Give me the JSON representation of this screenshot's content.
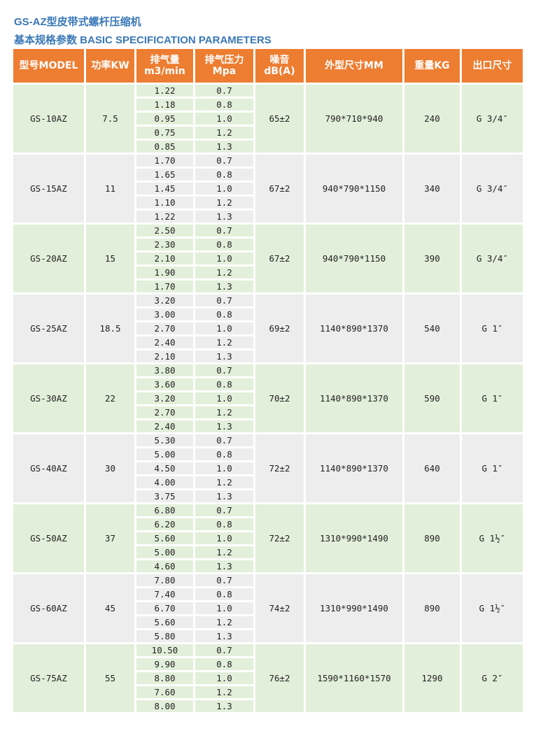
{
  "title": "GS-AZ型皮带式螺杆压缩机",
  "subtitle": "基本规格参数 BASIC SPECIFICATION PARAMETERS",
  "colors": {
    "header": "#ed7d31",
    "title": "#3a78b6",
    "row_green": "#e2efda",
    "row_gray": "#ededed"
  },
  "headers": [
    {
      "l1": "型号MODEL",
      "l2": ""
    },
    {
      "l1": "功率KW",
      "l2": ""
    },
    {
      "l1": "排气量",
      "l2": "m3/min"
    },
    {
      "l1": "排气压力",
      "l2": "Mpa"
    },
    {
      "l1": "噪音",
      "l2": "dB(A)"
    },
    {
      "l1": "外型尺寸MM",
      "l2": ""
    },
    {
      "l1": "重量KG",
      "l2": ""
    },
    {
      "l1": "出口尺寸",
      "l2": ""
    }
  ],
  "rows": [
    {
      "model": "GS-10AZ",
      "power": "7.5",
      "flow": [
        "1.22",
        "1.18",
        "0.95",
        "0.75",
        "0.85"
      ],
      "pressure": [
        "0.7",
        "0.8",
        "1.0",
        "1.2",
        "1.3"
      ],
      "noise": "65±2",
      "dims": "790*710*940",
      "weight": "240",
      "outlet": "G 3/4″"
    },
    {
      "model": "GS-15AZ",
      "power": "11",
      "flow": [
        "1.70",
        "1.65",
        "1.45",
        "1.10",
        "1.22"
      ],
      "pressure": [
        "0.7",
        "0.8",
        "1.0",
        "1.2",
        "1.3"
      ],
      "noise": "67±2",
      "dims": "940*790*1150",
      "weight": "340",
      "outlet": "G 3/4″"
    },
    {
      "model": "GS-20AZ",
      "power": "15",
      "flow": [
        "2.50",
        "2.30",
        "2.10",
        "1.90",
        "1.70"
      ],
      "pressure": [
        "0.7",
        "0.8",
        "1.0",
        "1.2",
        "1.3"
      ],
      "noise": "67±2",
      "dims": "940*790*1150",
      "weight": "390",
      "outlet": "G 3/4″"
    },
    {
      "model": "GS-25AZ",
      "power": "18.5",
      "flow": [
        "3.20",
        "3.00",
        "2.70",
        "2.40",
        "2.10"
      ],
      "pressure": [
        "0.7",
        "0.8",
        "1.0",
        "1.2",
        "1.3"
      ],
      "noise": "69±2",
      "dims": "1140*890*1370",
      "weight": "540",
      "outlet": "G 1″"
    },
    {
      "model": "GS-30AZ",
      "power": "22",
      "flow": [
        "3.80",
        "3.60",
        "3.20",
        "2.70",
        "2.40"
      ],
      "pressure": [
        "0.7",
        "0.8",
        "1.0",
        "1.2",
        "1.3"
      ],
      "noise": "70±2",
      "dims": "1140*890*1370",
      "weight": "590",
      "outlet": "G 1″"
    },
    {
      "model": "GS-40AZ",
      "power": "30",
      "flow": [
        "5.30",
        "5.00",
        "4.50",
        "4.00",
        "3.75"
      ],
      "pressure": [
        "0.7",
        "0.8",
        "1.0",
        "1.2",
        "1.3"
      ],
      "noise": "72±2",
      "dims": "1140*890*1370",
      "weight": "640",
      "outlet": "G 1″"
    },
    {
      "model": "GS-50AZ",
      "power": "37",
      "flow": [
        "6.80",
        "6.20",
        "5.60",
        "5.00",
        "4.60"
      ],
      "pressure": [
        "0.7",
        "0.8",
        "1.0",
        "1.2",
        "1.3"
      ],
      "noise": "72±2",
      "dims": "1310*990*1490",
      "weight": "890",
      "outlet": "G 1½″"
    },
    {
      "model": "GS-60AZ",
      "power": "45",
      "flow": [
        "7.80",
        "7.40",
        "6.70",
        "5.60",
        "5.80"
      ],
      "pressure": [
        "0.7",
        "0.8",
        "1.0",
        "1.2",
        "1.3"
      ],
      "noise": "74±2",
      "dims": "1310*990*1490",
      "weight": "890",
      "outlet": "G 1½″"
    },
    {
      "model": "GS-75AZ",
      "power": "55",
      "flow": [
        "10.50",
        "9.90",
        "8.80",
        "7.60",
        "8.00"
      ],
      "pressure": [
        "0.7",
        "0.8",
        "1.0",
        "1.2",
        "1.3"
      ],
      "noise": "76±2",
      "dims": "1590*1160*1570",
      "weight": "1290",
      "outlet": "G 2″"
    }
  ]
}
